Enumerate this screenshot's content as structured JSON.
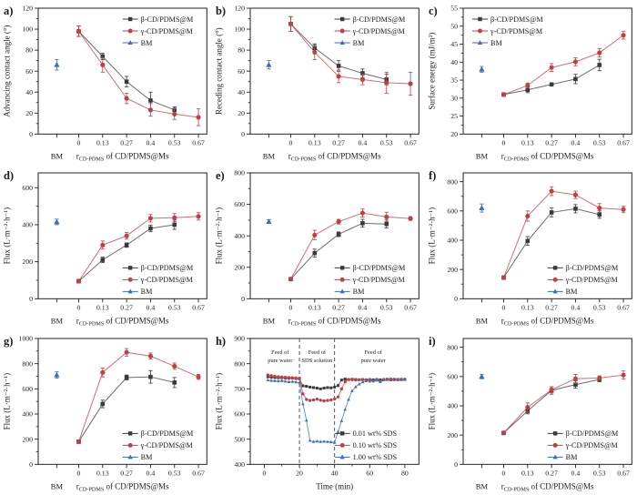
{
  "figure": {
    "colors": {
      "beta": "#3a3a3a",
      "gamma": "#bd4044",
      "bm": "#3d6eb4",
      "bm_label": "#5e92c4",
      "axis": "#222222"
    },
    "series_labels": {
      "beta": "β-CD/PDMS@M",
      "gamma": "γ-CD/PDMS@M",
      "bm": "BM"
    },
    "ratio_xlabel": {
      "pre": "r",
      "sub": "CD-PDMS",
      "post": " of CD/PDMS@Ms"
    },
    "bm_tick_label": "BM"
  },
  "chart_data": [
    {
      "id": "a",
      "panel_label": "a)",
      "type": "line",
      "title": "",
      "ylabel": "Advancing contact angle (°)",
      "ylim": [
        0,
        120
      ],
      "ytick_step": 20,
      "grid": false,
      "categories": [
        "0",
        "0.13",
        "0.27",
        "0.4",
        "0.53",
        "0.67"
      ],
      "legend_pos": "top-right",
      "series": [
        {
          "key": "beta",
          "marker": "square",
          "values": [
            98,
            74,
            50,
            32,
            23,
            null
          ],
          "errors": [
            5,
            3,
            5,
            8,
            3,
            null
          ]
        },
        {
          "key": "gamma",
          "marker": "circle",
          "values": [
            98,
            66,
            34,
            23,
            19,
            16
          ],
          "errors": [
            5,
            7,
            5,
            6,
            5,
            8
          ]
        }
      ],
      "bm": {
        "value": 66,
        "err": 5
      }
    },
    {
      "id": "b",
      "panel_label": "b)",
      "type": "line",
      "title": "",
      "ylabel": "Receding contact angle (°)",
      "ylim": [
        0,
        120
      ],
      "ytick_step": 20,
      "grid": false,
      "categories": [
        "0",
        "0.13",
        "0.27",
        "0.4",
        "0.53",
        "0.67"
      ],
      "legend_pos": "top-right",
      "series": [
        {
          "key": "beta",
          "marker": "square",
          "values": [
            105,
            82,
            65,
            58,
            52,
            null
          ],
          "errors": [
            7,
            4,
            5,
            4,
            5,
            null
          ]
        },
        {
          "key": "gamma",
          "marker": "circle",
          "values": [
            105,
            78,
            55,
            52,
            49,
            48
          ],
          "errors": [
            7,
            7,
            6,
            5,
            10,
            11
          ]
        }
      ],
      "bm": {
        "value": 66,
        "err": 4
      }
    },
    {
      "id": "c",
      "panel_label": "c)",
      "type": "line",
      "title": "",
      "ylabel": "Surface energy (mJ/m²)",
      "ylim": [
        20,
        55
      ],
      "ytick_step": 5,
      "grid": false,
      "categories": [
        "0",
        "0.13",
        "0.27",
        "0.4",
        "0.53",
        "0.67"
      ],
      "legend_pos": "top-left",
      "series": [
        {
          "key": "beta",
          "marker": "square",
          "values": [
            31,
            32.3,
            33.8,
            35.3,
            39.2,
            null
          ],
          "errors": [
            0.5,
            0.8,
            0.4,
            1.3,
            1.6,
            null
          ]
        },
        {
          "key": "gamma",
          "marker": "circle",
          "values": [
            31,
            33.5,
            38.5,
            40.1,
            42.6,
            47.5
          ],
          "errors": [
            0.5,
            0.7,
            1.1,
            1.1,
            1.2,
            1.1
          ]
        }
      ],
      "bm": {
        "value": 38,
        "err": 0.8
      }
    },
    {
      "id": "d",
      "panel_label": "d)",
      "type": "line",
      "title": "",
      "ylabel": "Flux (L·m⁻²·h⁻¹)",
      "ylim": [
        0,
        680
      ],
      "ytick_step": 200,
      "grid": false,
      "categories": [
        "0",
        "0.13",
        "0.27",
        "0.4",
        "0.53",
        "0.67"
      ],
      "legend_pos": "bottom-right",
      "series": [
        {
          "key": "beta",
          "marker": "square",
          "values": [
            95,
            210,
            290,
            380,
            400,
            null
          ],
          "errors": [
            10,
            15,
            12,
            18,
            25,
            null
          ]
        },
        {
          "key": "gamma",
          "marker": "circle",
          "values": [
            95,
            290,
            340,
            435,
            438,
            445
          ],
          "errors": [
            10,
            22,
            18,
            20,
            22,
            20
          ]
        }
      ],
      "bm": {
        "value": 415,
        "err": 15
      }
    },
    {
      "id": "e",
      "panel_label": "e)",
      "type": "line",
      "title": "",
      "ylabel": "Flux (L·m⁻²·h⁻¹)",
      "ylim": [
        0,
        800
      ],
      "ytick_step": 200,
      "grid": false,
      "categories": [
        "0",
        "0.13",
        "0.27",
        "0.4",
        "0.53",
        "0.67"
      ],
      "legend_pos": "bottom-right",
      "series": [
        {
          "key": "beta",
          "marker": "square",
          "values": [
            125,
            290,
            410,
            480,
            475,
            null
          ],
          "errors": [
            10,
            25,
            15,
            25,
            25,
            null
          ]
        },
        {
          "key": "gamma",
          "marker": "circle",
          "values": [
            125,
            405,
            490,
            545,
            520,
            510
          ],
          "errors": [
            10,
            30,
            15,
            25,
            30,
            12
          ]
        }
      ],
      "bm": {
        "value": 490,
        "err": 12
      }
    },
    {
      "id": "f",
      "panel_label": "f)",
      "type": "line",
      "title": "",
      "ylabel": "Flux (L·m⁻²·h⁻¹)",
      "ylim": [
        0,
        860
      ],
      "ytick_step": 200,
      "grid": false,
      "categories": [
        "0",
        "0.13",
        "0.27",
        "0.4",
        "0.53",
        "0.67"
      ],
      "legend_pos": "bottom-right",
      "series": [
        {
          "key": "beta",
          "marker": "square",
          "values": [
            145,
            395,
            590,
            615,
            575,
            null
          ],
          "errors": [
            12,
            30,
            30,
            28,
            25,
            null
          ]
        },
        {
          "key": "gamma",
          "marker": "circle",
          "values": [
            145,
            565,
            735,
            710,
            620,
            610
          ],
          "errors": [
            12,
            35,
            30,
            25,
            30,
            22
          ]
        }
      ],
      "bm": {
        "value": 620,
        "err": 28
      }
    },
    {
      "id": "g",
      "panel_label": "g)",
      "type": "line",
      "title": "",
      "ylabel": "Flux (L·m⁻²·h⁻¹)",
      "ylim": [
        0,
        1000
      ],
      "ytick_step": 200,
      "grid": false,
      "categories": [
        "0",
        "0.13",
        "0.27",
        "0.4",
        "0.53",
        "0.67"
      ],
      "legend_pos": "bottom-right",
      "series": [
        {
          "key": "beta",
          "marker": "square",
          "values": [
            180,
            480,
            690,
            695,
            650,
            null
          ],
          "errors": [
            12,
            30,
            20,
            50,
            40,
            null
          ]
        },
        {
          "key": "gamma",
          "marker": "circle",
          "values": [
            180,
            730,
            890,
            860,
            780,
            695
          ],
          "errors": [
            12,
            35,
            30,
            25,
            25,
            20
          ]
        }
      ],
      "bm": {
        "value": 710,
        "err": 25
      }
    },
    {
      "id": "h",
      "panel_label": "h)",
      "type": "line-time",
      "title": "",
      "ylabel": "Flux (L·m⁻²·h⁻¹)",
      "xlabel": "Time (min)",
      "ylim": [
        400,
        900
      ],
      "ytick_step": 100,
      "grid": false,
      "xlim": [
        -8,
        88
      ],
      "xticks": [
        0,
        20,
        40,
        60,
        80
      ],
      "dashed_x": [
        20,
        40
      ],
      "annotations": [
        {
          "lines": [
            "Feed of",
            "pure water"
          ],
          "x": 9
        },
        {
          "lines": [
            "Feed of",
            "SDS solution"
          ],
          "x": 30
        },
        {
          "lines": [
            "Feed of",
            "pure water"
          ],
          "x": 62
        }
      ],
      "legend_pos": "bottom-right",
      "x": [
        2,
        4,
        6,
        8,
        10,
        12,
        14,
        16,
        18,
        20,
        22,
        24,
        26,
        28,
        30,
        32,
        34,
        36,
        38,
        40,
        42,
        44,
        46,
        48,
        50,
        52,
        54,
        56,
        58,
        60,
        62,
        64,
        66,
        68,
        70,
        72,
        74,
        76,
        78,
        80
      ],
      "series": [
        {
          "name": "0.01 wt% SDS",
          "key": "beta",
          "marker": "square",
          "y": [
            748,
            746,
            745,
            744,
            744,
            743,
            742,
            743,
            741,
            740,
            712,
            710,
            707,
            705,
            703,
            700,
            703,
            705,
            704,
            707,
            713,
            735,
            739,
            737,
            738,
            737,
            736,
            737,
            736,
            737,
            736,
            737,
            736,
            737,
            738,
            737,
            738,
            737,
            738,
            737
          ]
        },
        {
          "name": "0.10 wt% SDS",
          "key": "gamma",
          "marker": "circle",
          "y": [
            755,
            752,
            750,
            748,
            747,
            746,
            745,
            744,
            743,
            742,
            680,
            658,
            654,
            656,
            659,
            655,
            652,
            654,
            656,
            660,
            668,
            700,
            728,
            737,
            736,
            735,
            736,
            737,
            735,
            736,
            731,
            735,
            729,
            736,
            737,
            739,
            737,
            736,
            737,
            738
          ]
        },
        {
          "name": "1.00 wt% SDS",
          "key": "bm",
          "marker": "triangle",
          "y": [
            735,
            733,
            732,
            731,
            732,
            730,
            728,
            729,
            727,
            725,
            640,
            575,
            495,
            490,
            492,
            490,
            491,
            490,
            489,
            487,
            530,
            573,
            618,
            658,
            692,
            708,
            719,
            727,
            732,
            730,
            733,
            734,
            729,
            735,
            737,
            735,
            736,
            737,
            736,
            737
          ]
        }
      ]
    },
    {
      "id": "i",
      "panel_label": "i)",
      "type": "line",
      "title": "",
      "ylabel": "Flux (L·m⁻²·h⁻¹)",
      "ylim": [
        0,
        860
      ],
      "ytick_step": 200,
      "grid": false,
      "categories": [
        "0",
        "0.13",
        "0.27",
        "0.4",
        "0.53",
        "0.67"
      ],
      "legend_pos": "bottom-right",
      "series": [
        {
          "key": "beta",
          "marker": "square",
          "values": [
            215,
            365,
            505,
            545,
            580,
            null
          ],
          "errors": [
            8,
            20,
            25,
            25,
            15,
            null
          ]
        },
        {
          "key": "gamma",
          "marker": "circle",
          "values": [
            215,
            390,
            510,
            585,
            590,
            610
          ],
          "errors": [
            8,
            30,
            20,
            30,
            15,
            28
          ]
        }
      ],
      "bm": {
        "value": 600,
        "err": 15
      }
    }
  ]
}
